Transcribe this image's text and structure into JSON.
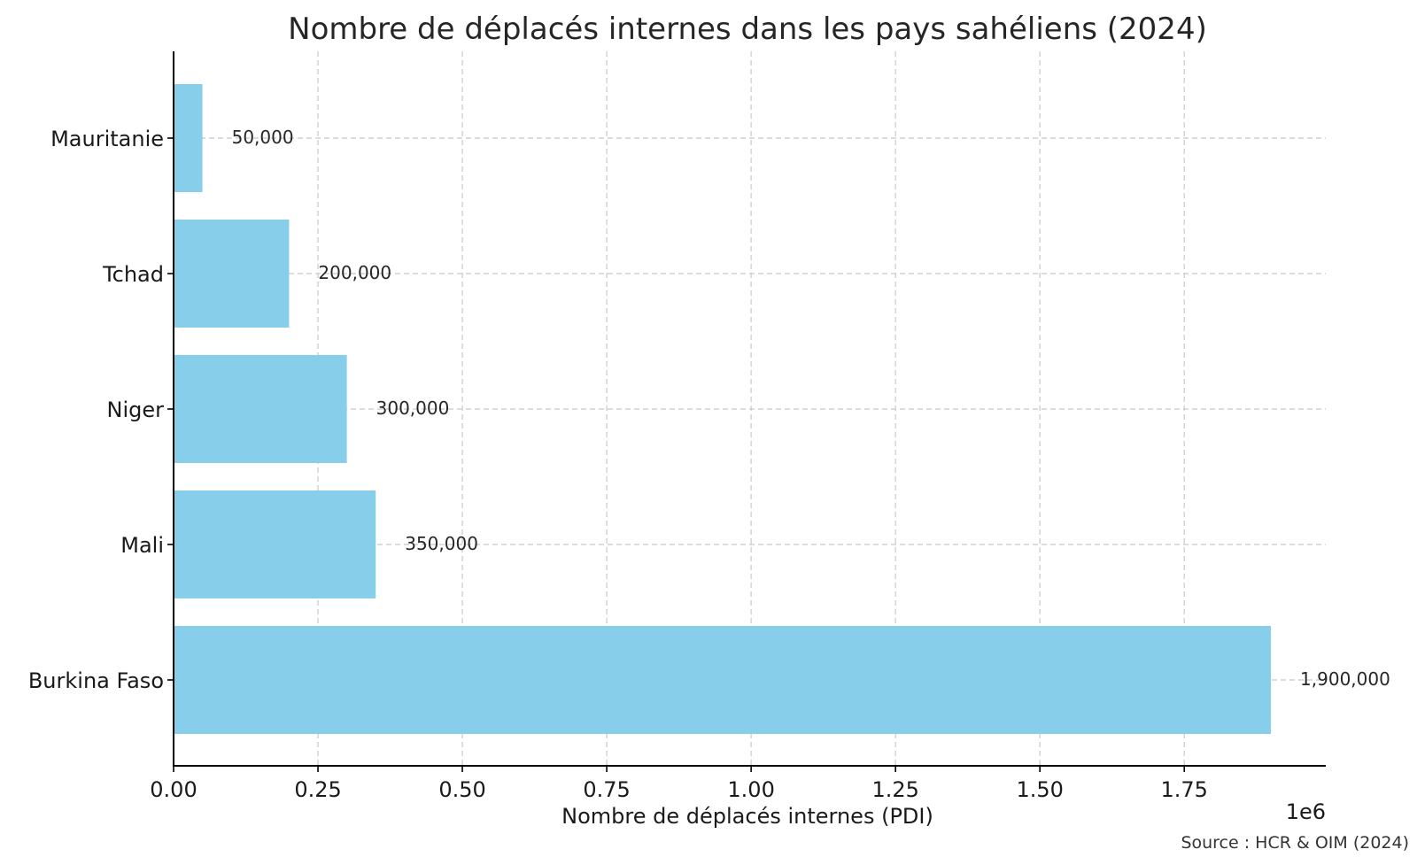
{
  "chart_data": {
    "type": "bar",
    "orientation": "horizontal",
    "title": "Nombre de déplacés internes dans les pays sahéliens (2024)",
    "xlabel": "Nombre de déplacés internes (PDI)",
    "ylabel": "",
    "x_offset_label": "1e6",
    "xlim": [
      0,
      1995000
    ],
    "x_ticks": [
      0,
      250000,
      500000,
      750000,
      1000000,
      1250000,
      1500000,
      1750000
    ],
    "x_tick_labels": [
      "0.00",
      "0.25",
      "0.50",
      "0.75",
      "1.00",
      "1.25",
      "1.50",
      "1.75"
    ],
    "categories": [
      "Burkina Faso",
      "Mali",
      "Niger",
      "Tchad",
      "Mauritanie"
    ],
    "values": [
      1900000,
      350000,
      300000,
      200000,
      50000
    ],
    "value_labels": [
      "1,900,000",
      "350,000",
      "300,000",
      "200,000",
      "50,000"
    ],
    "bar_color": "#87CEEB",
    "grid": true,
    "source": "Source : HCR & OIM (2024)"
  }
}
